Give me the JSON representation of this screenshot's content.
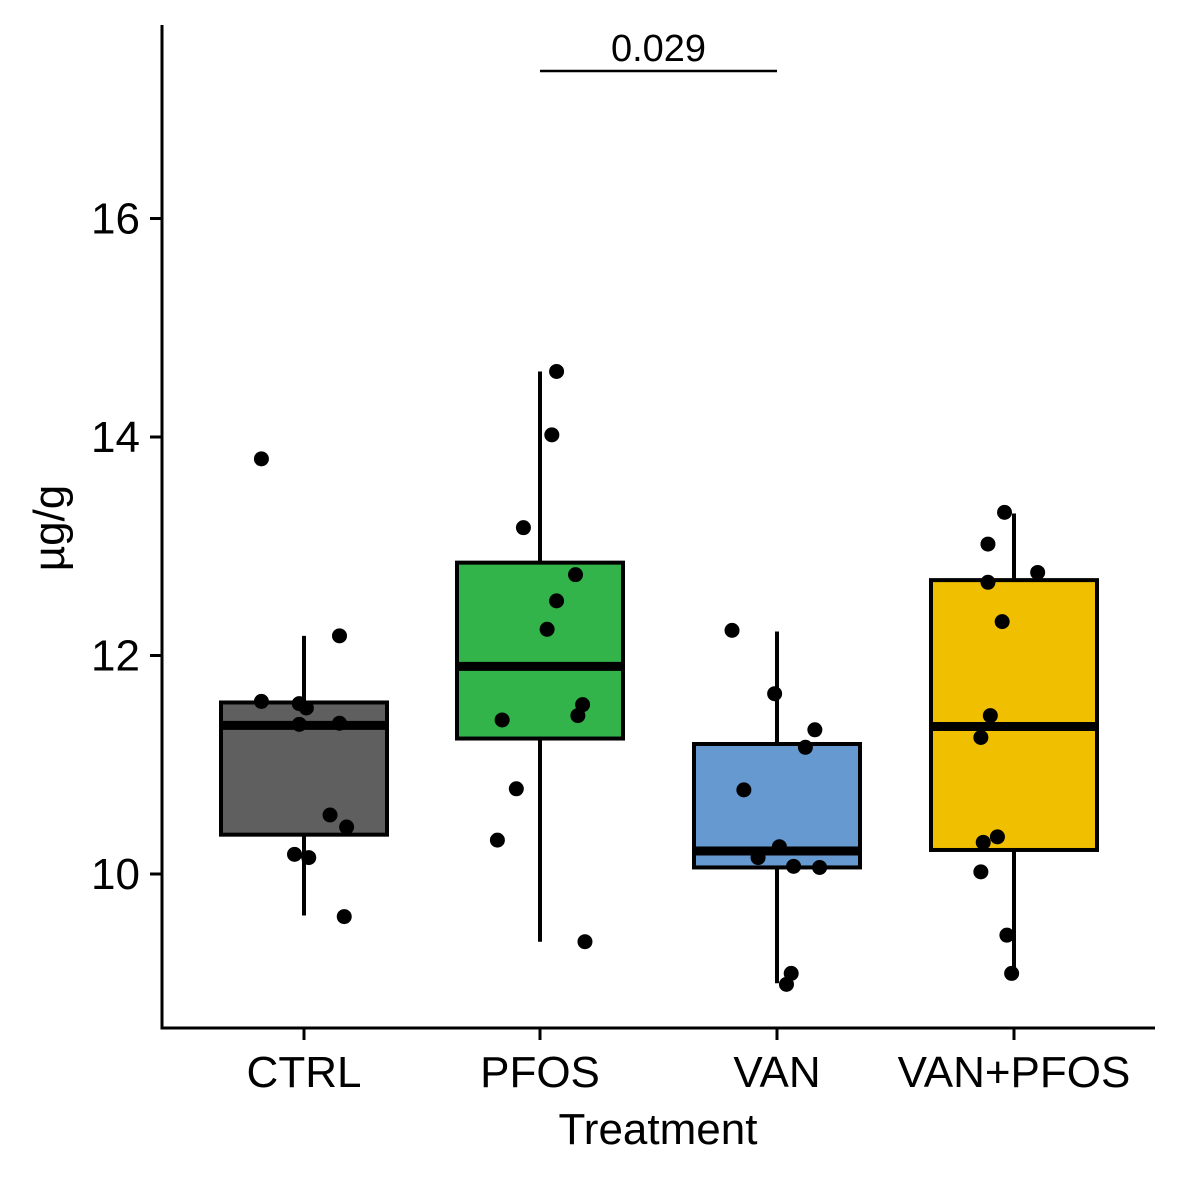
{
  "chart_data": {
    "type": "boxplot",
    "title": "",
    "xlabel": "Treatment",
    "ylabel": "µg/g",
    "ylim": [
      8.6,
      17.6
    ],
    "yticks": [
      10,
      12,
      14,
      16
    ],
    "ytick_labels": [
      "10",
      "12",
      "14",
      "16"
    ],
    "categories": [
      "CTRL",
      "PFOS",
      "VAN",
      "VAN+PFOS"
    ],
    "groups": [
      {
        "name": "CTRL",
        "color": "#5f5f5f",
        "whisker_low": 9.62,
        "q1": 10.36,
        "median": 11.36,
        "q3": 11.57,
        "whisker_high": 12.18,
        "points": [
          {
            "jitter": -0.18,
            "value": 13.8
          },
          {
            "jitter": 0.15,
            "value": 12.18
          },
          {
            "jitter": -0.18,
            "value": 11.58
          },
          {
            "jitter": -0.02,
            "value": 11.56
          },
          {
            "jitter": 0.01,
            "value": 11.52
          },
          {
            "jitter": -0.02,
            "value": 11.37
          },
          {
            "jitter": 0.15,
            "value": 11.38
          },
          {
            "jitter": 0.11,
            "value": 10.54
          },
          {
            "jitter": 0.18,
            "value": 10.43
          },
          {
            "jitter": -0.04,
            "value": 10.18
          },
          {
            "jitter": 0.02,
            "value": 10.15
          },
          {
            "jitter": 0.17,
            "value": 9.61
          }
        ]
      },
      {
        "name": "PFOS",
        "color": "#33b44a",
        "whisker_low": 9.38,
        "q1": 11.24,
        "median": 11.9,
        "q3": 12.85,
        "whisker_high": 14.6,
        "points": [
          {
            "jitter": 0.07,
            "value": 14.6
          },
          {
            "jitter": 0.05,
            "value": 14.02
          },
          {
            "jitter": -0.07,
            "value": 13.17
          },
          {
            "jitter": 0.15,
            "value": 12.74
          },
          {
            "jitter": 0.07,
            "value": 12.5
          },
          {
            "jitter": 0.03,
            "value": 12.24
          },
          {
            "jitter": 0.18,
            "value": 11.55
          },
          {
            "jitter": 0.16,
            "value": 11.45
          },
          {
            "jitter": -0.16,
            "value": 11.41
          },
          {
            "jitter": -0.1,
            "value": 10.78
          },
          {
            "jitter": -0.18,
            "value": 10.31
          },
          {
            "jitter": 0.19,
            "value": 9.38
          }
        ]
      },
      {
        "name": "VAN",
        "color": "#6699d0",
        "whisker_low": 9.0,
        "q1": 10.06,
        "median": 10.21,
        "q3": 11.19,
        "whisker_high": 12.22,
        "points": [
          {
            "jitter": -0.19,
            "value": 12.23
          },
          {
            "jitter": -0.01,
            "value": 11.65
          },
          {
            "jitter": 0.16,
            "value": 11.32
          },
          {
            "jitter": 0.12,
            "value": 11.16
          },
          {
            "jitter": -0.14,
            "value": 10.77
          },
          {
            "jitter": 0.01,
            "value": 10.25
          },
          {
            "jitter": -0.08,
            "value": 10.15
          },
          {
            "jitter": 0.07,
            "value": 10.07
          },
          {
            "jitter": 0.18,
            "value": 10.06
          },
          {
            "jitter": 0.06,
            "value": 9.09
          },
          {
            "jitter": 0.04,
            "value": 8.99
          }
        ]
      },
      {
        "name": "VAN+PFOS",
        "color": "#f0c000",
        "whisker_low": 9.08,
        "q1": 10.22,
        "median": 11.35,
        "q3": 12.69,
        "whisker_high": 13.3,
        "points": [
          {
            "jitter": -0.04,
            "value": 13.31
          },
          {
            "jitter": -0.11,
            "value": 13.02
          },
          {
            "jitter": 0.1,
            "value": 12.76
          },
          {
            "jitter": -0.11,
            "value": 12.67
          },
          {
            "jitter": -0.05,
            "value": 12.31
          },
          {
            "jitter": -0.1,
            "value": 11.45
          },
          {
            "jitter": -0.14,
            "value": 11.25
          },
          {
            "jitter": -0.07,
            "value": 10.34
          },
          {
            "jitter": -0.13,
            "value": 10.29
          },
          {
            "jitter": -0.14,
            "value": 10.02
          },
          {
            "jitter": -0.03,
            "value": 9.44
          },
          {
            "jitter": -0.01,
            "value": 9.09
          }
        ]
      }
    ],
    "annotations": [
      {
        "type": "significance",
        "from": "PFOS",
        "to": "VAN",
        "label": "0.029",
        "y": 17.35
      }
    ]
  }
}
